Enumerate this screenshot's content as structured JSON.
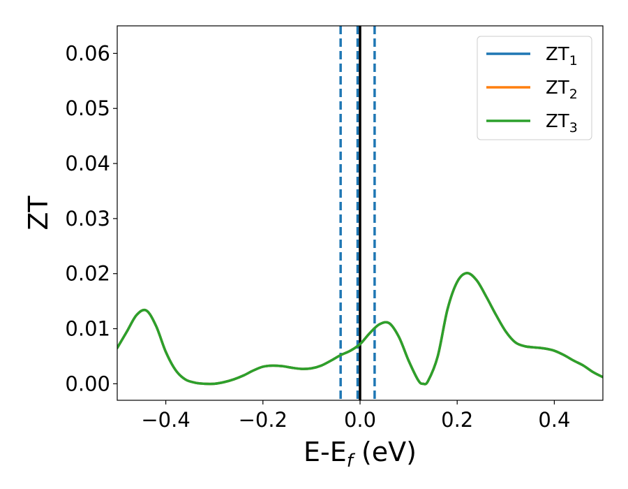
{
  "chart_data": {
    "type": "line",
    "title": "",
    "xlabel": "E-E",
    "xlabel_sub": "f",
    "xlabel_unit": " (eV)",
    "ylabel": "ZT",
    "xlim": [
      -0.5,
      0.5
    ],
    "ylim": [
      -0.003,
      0.065
    ],
    "x_ticks": [
      -0.4,
      -0.2,
      0.0,
      0.2,
      0.4
    ],
    "x_tick_labels": [
      "−0.4",
      "−0.2",
      "0.0",
      "0.2",
      "0.4"
    ],
    "y_ticks": [
      0.0,
      0.01,
      0.02,
      0.03,
      0.04,
      0.05,
      0.06
    ],
    "y_tick_labels": [
      "0.00",
      "0.01",
      "0.02",
      "0.03",
      "0.04",
      "0.05",
      "0.06"
    ],
    "grid": false,
    "legend_position": "top-right",
    "vertical_lines": [
      {
        "x": -0.04,
        "style": "dashed",
        "color": "#1f77b4"
      },
      {
        "x": -0.005,
        "style": "dashed",
        "color": "#1f77b4"
      },
      {
        "x": 0.0,
        "style": "solid",
        "color": "#000000"
      },
      {
        "x": 0.03,
        "style": "dashed",
        "color": "#1f77b4"
      }
    ],
    "x": [
      -0.5,
      -0.48,
      -0.46,
      -0.44,
      -0.42,
      -0.4,
      -0.38,
      -0.36,
      -0.34,
      -0.32,
      -0.3,
      -0.28,
      -0.26,
      -0.24,
      -0.22,
      -0.2,
      -0.18,
      -0.16,
      -0.14,
      -0.12,
      -0.1,
      -0.08,
      -0.06,
      -0.04,
      -0.02,
      0.0,
      0.02,
      0.04,
      0.06,
      0.08,
      0.1,
      0.12,
      0.13,
      0.14,
      0.16,
      0.18,
      0.2,
      0.22,
      0.24,
      0.26,
      0.28,
      0.3,
      0.32,
      0.34,
      0.36,
      0.38,
      0.4,
      0.42,
      0.44,
      0.46,
      0.48,
      0.5
    ],
    "series": [
      {
        "name": "ZT",
        "name_sub": "1",
        "color": "#1f77b4",
        "values": [
          0.0065,
          0.0095,
          0.0125,
          0.0133,
          0.0105,
          0.0058,
          0.0025,
          0.0008,
          0.0002,
          0.0,
          0.0,
          0.0003,
          0.0008,
          0.0015,
          0.0024,
          0.0031,
          0.0033,
          0.0032,
          0.0029,
          0.0027,
          0.0028,
          0.0033,
          0.0042,
          0.0052,
          0.006,
          0.0072,
          0.0092,
          0.0108,
          0.011,
          0.0085,
          0.0042,
          0.0006,
          0.0,
          0.0005,
          0.005,
          0.0135,
          0.0185,
          0.0201,
          0.0188,
          0.0158,
          0.0125,
          0.0095,
          0.0075,
          0.0068,
          0.0066,
          0.0064,
          0.006,
          0.0052,
          0.0042,
          0.0033,
          0.0021,
          0.0012
        ]
      },
      {
        "name": "ZT",
        "name_sub": "2",
        "color": "#ff7f0e",
        "values": [
          0.0065,
          0.0095,
          0.0125,
          0.0133,
          0.0105,
          0.0058,
          0.0025,
          0.0008,
          0.0002,
          0.0,
          0.0,
          0.0003,
          0.0008,
          0.0015,
          0.0024,
          0.0031,
          0.0033,
          0.0032,
          0.0029,
          0.0027,
          0.0028,
          0.0033,
          0.0042,
          0.0052,
          0.006,
          0.0072,
          0.0092,
          0.0108,
          0.011,
          0.0085,
          0.0042,
          0.0006,
          0.0,
          0.0005,
          0.005,
          0.0135,
          0.0185,
          0.0201,
          0.0188,
          0.0158,
          0.0125,
          0.0095,
          0.0075,
          0.0068,
          0.0066,
          0.0064,
          0.006,
          0.0052,
          0.0042,
          0.0033,
          0.0021,
          0.0012
        ]
      },
      {
        "name": "ZT",
        "name_sub": "3",
        "color": "#2ca02c",
        "values": [
          0.0065,
          0.0095,
          0.0125,
          0.0133,
          0.0105,
          0.0058,
          0.0025,
          0.0008,
          0.0002,
          0.0,
          0.0,
          0.0003,
          0.0008,
          0.0015,
          0.0024,
          0.0031,
          0.0033,
          0.0032,
          0.0029,
          0.0027,
          0.0028,
          0.0033,
          0.0042,
          0.0052,
          0.006,
          0.0072,
          0.0092,
          0.0108,
          0.011,
          0.0085,
          0.0042,
          0.0006,
          0.0,
          0.0005,
          0.005,
          0.0135,
          0.0185,
          0.0201,
          0.0188,
          0.0158,
          0.0125,
          0.0095,
          0.0075,
          0.0068,
          0.0066,
          0.0064,
          0.006,
          0.0052,
          0.0042,
          0.0033,
          0.0021,
          0.0012
        ]
      }
    ]
  }
}
